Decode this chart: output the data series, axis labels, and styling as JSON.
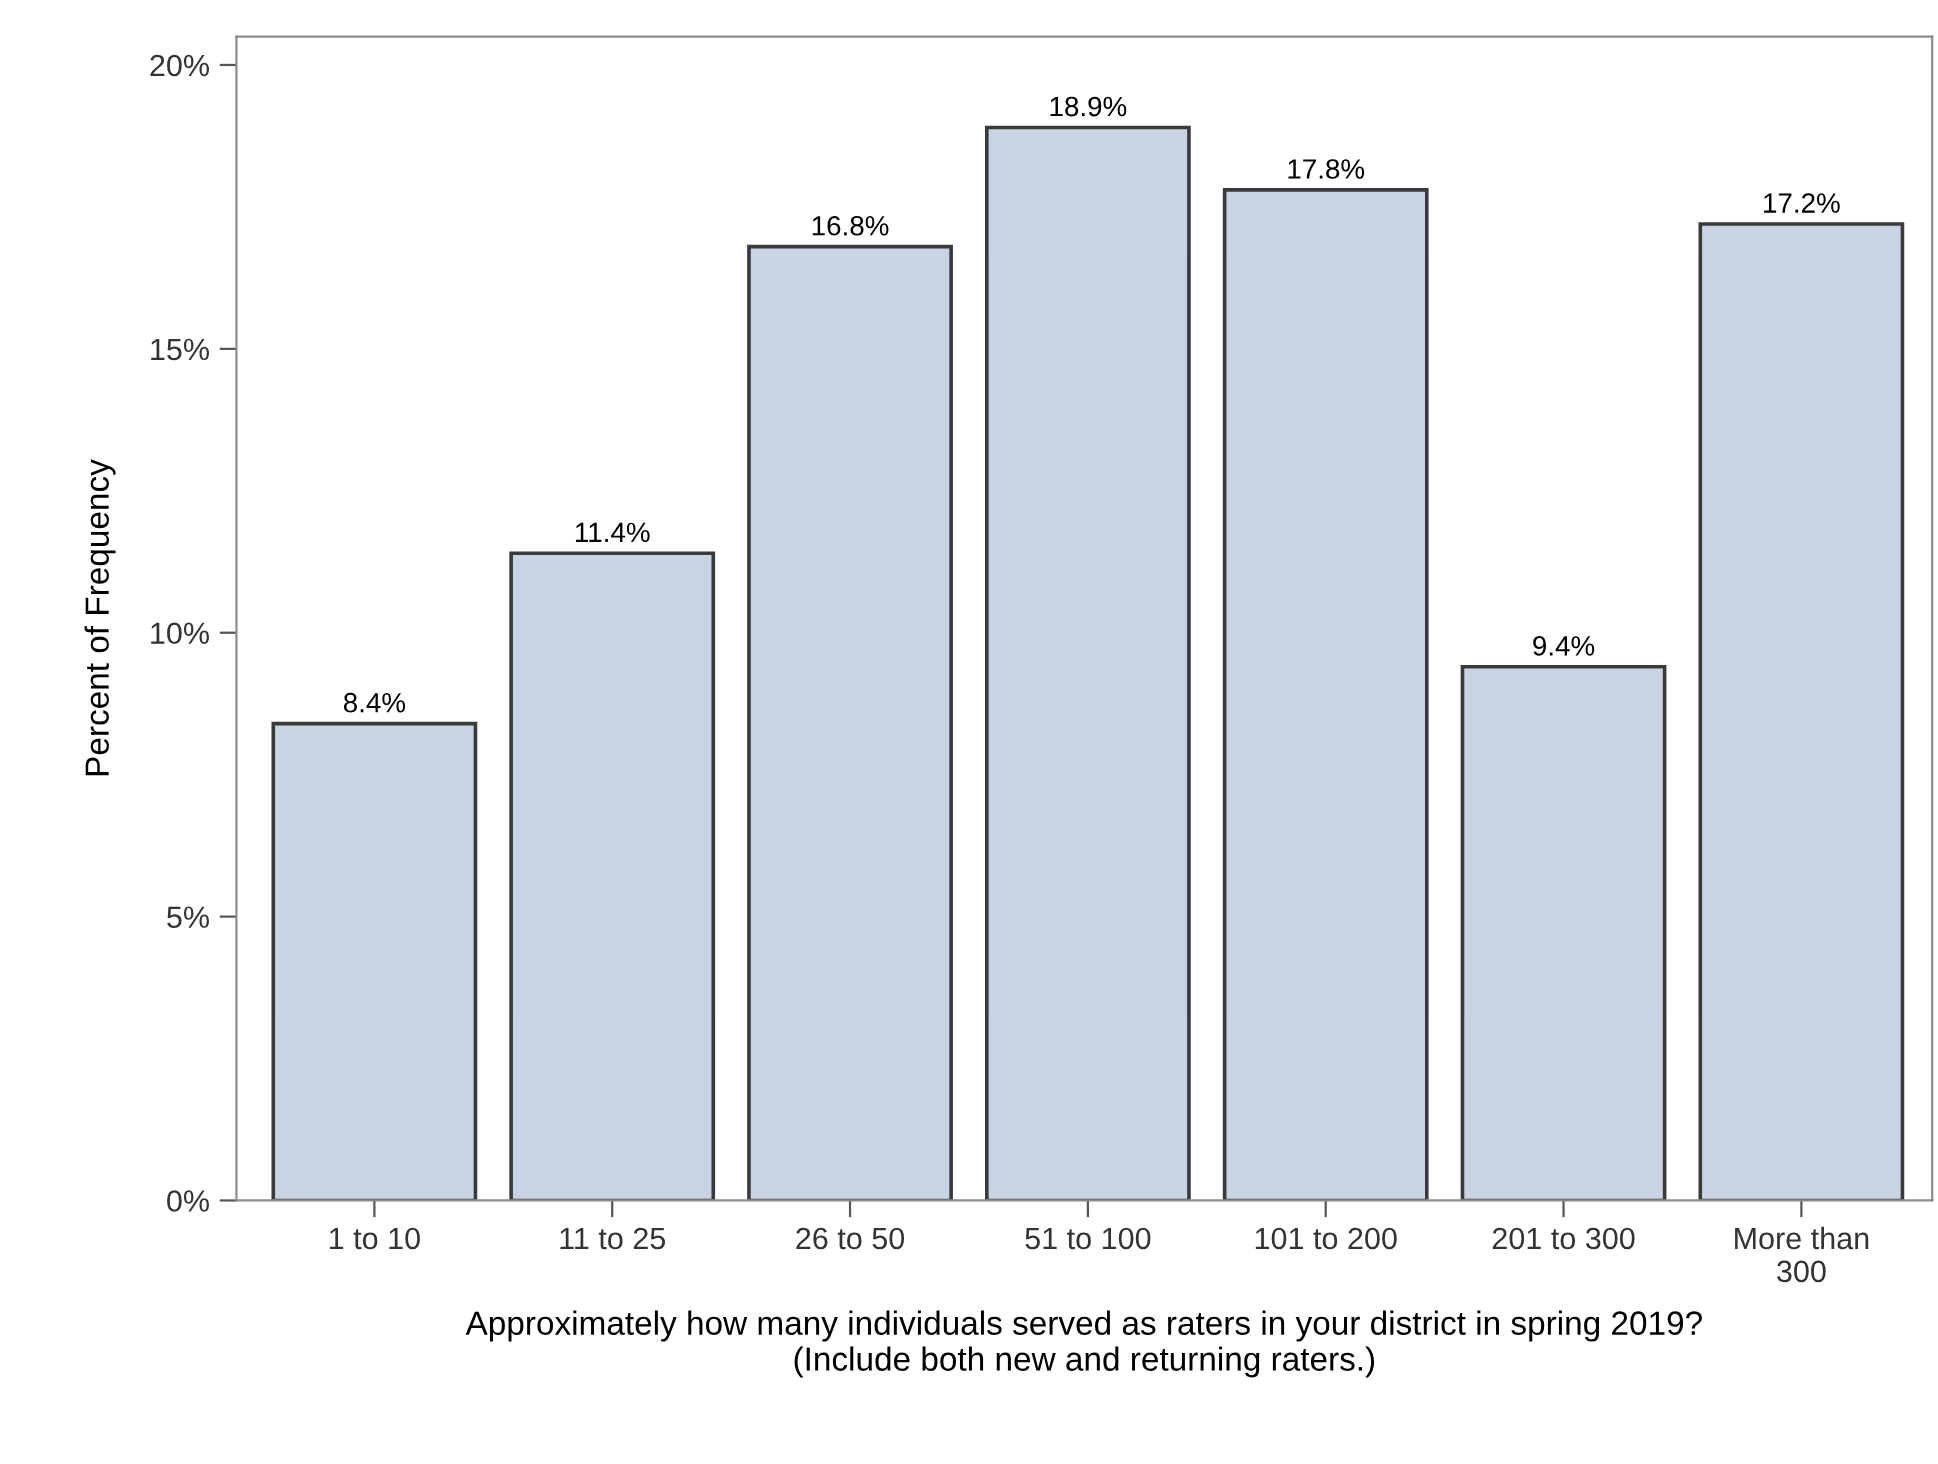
{
  "chart_data": {
    "type": "bar",
    "categories": [
      "1 to 10",
      "11 to 25",
      "26 to 50",
      "51 to 100",
      "101 to 200",
      "201 to 300",
      "More than\n300"
    ],
    "values": [
      8.4,
      11.4,
      16.8,
      18.9,
      17.8,
      9.4,
      17.2
    ],
    "value_labels": [
      "8.4%",
      "11.4%",
      "16.8%",
      "18.9%",
      "17.8%",
      "9.4%",
      "17.2%"
    ],
    "color": "#c8d4e4",
    "xlabel": "Approximately how many individuals served as raters in your district in spring 2019?\n(Include both new and returning raters.)",
    "ylabel": "Percent of Frequency",
    "ylim": [
      0,
      20.5
    ],
    "yticks": [
      {
        "value": 0,
        "label": "0%"
      },
      {
        "value": 5,
        "label": "5%"
      },
      {
        "value": 10,
        "label": "10%"
      },
      {
        "value": 15,
        "label": "15%"
      },
      {
        "value": 20,
        "label": "20%"
      }
    ],
    "grid": false,
    "legend": false
  }
}
